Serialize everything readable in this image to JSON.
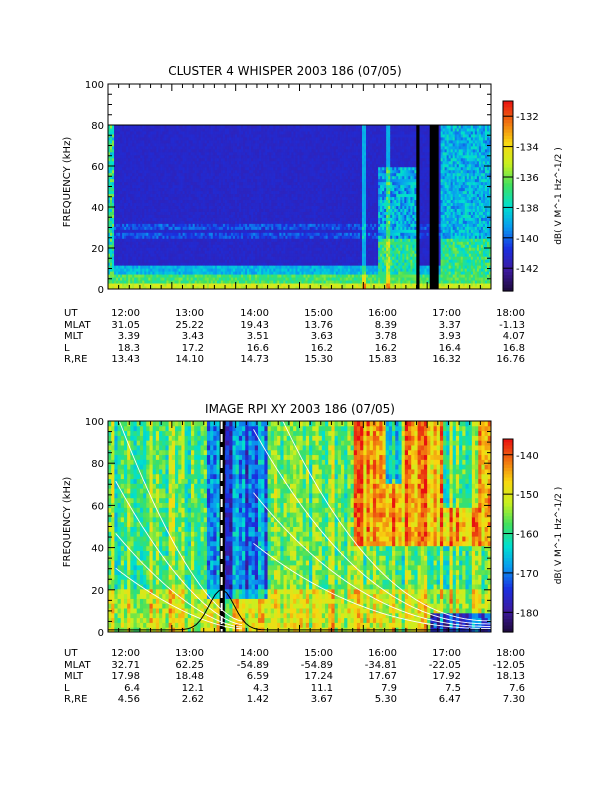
{
  "colors": {
    "background": "#ffffff",
    "axes": "#000000",
    "trace_white": "#ffffff",
    "trace_black": "#000000",
    "colormap": [
      "#1e0a3c",
      "#3d1aa0",
      "#1a2fe0",
      "#0a9af0",
      "#00e0d0",
      "#40e060",
      "#c8f020",
      "#f8d810",
      "#f07010",
      "#e81010"
    ]
  },
  "chart_data": [
    {
      "type": "heatmap",
      "title": "CLUSTER 4 WHISPER 2003 186 (07/05)",
      "ylabel": "FREQUENCY (kHz)",
      "ylim": [
        0,
        100
      ],
      "yticks": [
        "0",
        "20",
        "40",
        "60",
        "80",
        "100"
      ],
      "xlim_hours": [
        12,
        18
      ],
      "xticks": [
        "12:00",
        "13:00",
        "14:00",
        "15:00",
        "16:00",
        "17:00",
        "18:00"
      ],
      "data_max_frequency_khz": 80,
      "colorbar": {
        "label": "dB( V M^-1 Hz^-1/2 )",
        "range": [
          -143.5,
          -131
        ],
        "ticks": [
          "-132",
          "-134",
          "-136",
          "-138",
          "-140",
          "-142"
        ],
        "tick_values": [
          -132,
          -134,
          -136,
          -138,
          -140,
          -142
        ]
      },
      "data_gaps_hours": [
        [
          16.83,
          16.88
        ],
        [
          17.04,
          17.18
        ]
      ],
      "ephemeris": {
        "rows": [
          {
            "label": "UT",
            "values": [
              "12:00",
              "13:00",
              "14:00",
              "15:00",
              "16:00",
              "17:00",
              "18:00"
            ]
          },
          {
            "label": "MLAT",
            "values": [
              "31.05",
              "25.22",
              "19.43",
              "13.76",
              "8.39",
              "3.37",
              "-1.13"
            ]
          },
          {
            "label": "MLT",
            "values": [
              "3.39",
              "3.43",
              "3.51",
              "3.63",
              "3.78",
              "3.93",
              "4.07"
            ]
          },
          {
            "label": "L",
            "values": [
              "18.3",
              "17.2",
              "16.6",
              "16.2",
              "16.2",
              "16.4",
              "16.8"
            ]
          },
          {
            "label": "R,RE",
            "values": [
              "13.43",
              "14.10",
              "14.73",
              "15.30",
              "15.83",
              "16.32",
              "16.76"
            ]
          }
        ]
      }
    },
    {
      "type": "heatmap",
      "title": "IMAGE RPI XY 2003 186 (07/05)",
      "ylabel": "FREQUENCY (kHz)",
      "ylim": [
        0,
        100
      ],
      "yticks": [
        "0",
        "20",
        "40",
        "60",
        "80",
        "100"
      ],
      "xlim_hours": [
        12,
        18
      ],
      "xticks": [
        "12:00",
        "13:00",
        "14:00",
        "15:00",
        "16:00",
        "17:00",
        "18:00"
      ],
      "colorbar": {
        "label": "dB( V M^-1 Hz^-1/2 )",
        "range": [
          -185,
          -136
        ],
        "ticks": [
          "-140",
          "-150",
          "-160",
          "-170",
          "-180"
        ],
        "tick_values": [
          -140,
          -150,
          -160,
          -170,
          -180
        ]
      },
      "data_gaps_hours": [
        [
          13.75,
          13.83
        ]
      ],
      "dashed_marker_hour": 13.78,
      "ephemeris": {
        "rows": [
          {
            "label": "UT",
            "values": [
              "12:00",
              "13:00",
              "14:00",
              "15:00",
              "16:00",
              "17:00",
              "18:00"
            ]
          },
          {
            "label": "MLAT",
            "values": [
              "32.71",
              "62.25",
              "-54.89",
              "-54.89",
              "-34.81",
              "-22.05",
              "-12.05"
            ]
          },
          {
            "label": "MLT",
            "values": [
              "17.98",
              "18.48",
              "6.59",
              "17.24",
              "17.67",
              "17.92",
              "18.13"
            ]
          },
          {
            "label": "L",
            "values": [
              "6.4",
              "12.1",
              "4.3",
              "11.1",
              "7.9",
              "7.5",
              "7.6"
            ]
          },
          {
            "label": "R,RE",
            "values": [
              "4.56",
              "2.62",
              "1.42",
              "3.67",
              "5.30",
              "6.47",
              "7.30"
            ]
          }
        ]
      }
    }
  ]
}
